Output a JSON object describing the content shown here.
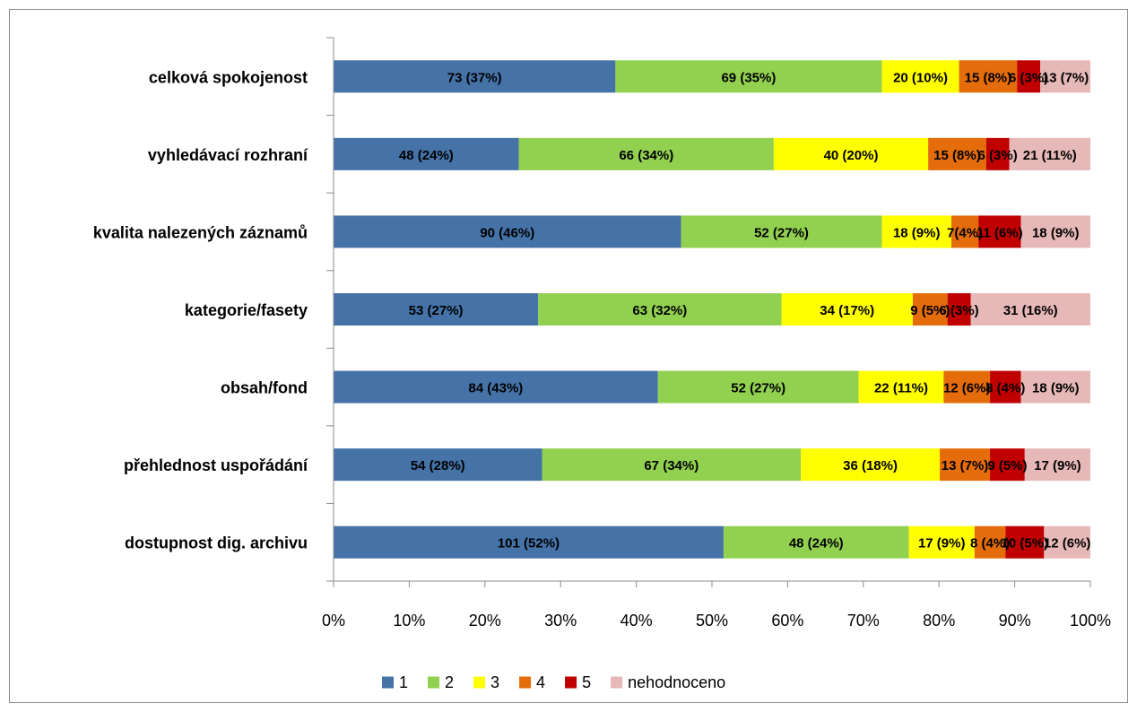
{
  "chart_data": {
    "type": "bar",
    "orientation": "horizontal",
    "stacked": "percent",
    "categories": [
      "celková spokojenost",
      "vyhledávací rozhraní",
      "kvalita nalezených záznamů",
      "kategorie/fasety",
      "obsah/fond",
      "přehlednost uspořádání",
      "dostupnost dig. archivu"
    ],
    "series": [
      {
        "name": "1",
        "color": "#4572A7",
        "values": [
          73,
          48,
          90,
          53,
          84,
          54,
          101
        ],
        "labels": [
          "73 (37%)",
          "48 (24%)",
          "90 (46%)",
          "53 (27%)",
          "84 (43%)",
          "54 (28%)",
          "101 (52%)"
        ]
      },
      {
        "name": "2",
        "color": "#92D050",
        "values": [
          69,
          66,
          52,
          63,
          52,
          67,
          48
        ],
        "labels": [
          "69 (35%)",
          "66 (34%)",
          "52 (27%)",
          "63 (32%)",
          "52 (27%)",
          "67 (34%)",
          "48 (24%)"
        ]
      },
      {
        "name": "3",
        "color": "#FFFF00",
        "values": [
          20,
          40,
          18,
          34,
          22,
          36,
          17
        ],
        "labels": [
          "20 (10%)",
          "40 (20%)",
          "18 (9%)",
          "34 (17%)",
          "22 (11%)",
          "36 (18%)",
          "17 (9%)"
        ]
      },
      {
        "name": "4",
        "color": "#E46C0A",
        "values": [
          15,
          15,
          7,
          9,
          12,
          13,
          8
        ],
        "labels": [
          "15 (8%)",
          "15 (8%)",
          "7(4%)",
          "9 (5%)",
          "12 (6%)",
          "13 (7%)",
          "8 (4%)"
        ]
      },
      {
        "name": "5",
        "color": "#C00000",
        "values": [
          6,
          6,
          11,
          6,
          8,
          9,
          10
        ],
        "labels": [
          "6 (3%)",
          "6 (3%)",
          "11 (6%)",
          "6 (3%)",
          "8 (4%)",
          "9 (5%)",
          "10 (5%)"
        ]
      },
      {
        "name": "nehodnoceno",
        "color": "#E6B9B8",
        "values": [
          13,
          21,
          18,
          31,
          18,
          17,
          12
        ],
        "labels": [
          "13 (7%)",
          "21 (11%)",
          "18 (9%)",
          "31 (16%)",
          "18 (9%)",
          "17 (9%)",
          "12 (6%)"
        ]
      }
    ],
    "x_ticks": [
      "0%",
      "10%",
      "20%",
      "30%",
      "40%",
      "50%",
      "60%",
      "70%",
      "80%",
      "90%",
      "100%"
    ],
    "xlim": [
      0,
      100
    ],
    "grid": false,
    "legend": "bottom"
  }
}
